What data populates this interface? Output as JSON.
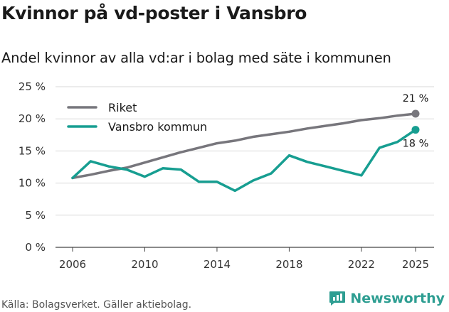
{
  "header": {
    "title": "Kvinnor på vd-poster i Vansbro",
    "subtitle": "Andel kvinnor av alla vd:ar i bolag med säte i kommunen"
  },
  "footer": {
    "source": "Källa: Bolagsverket. Gäller aktiebolag.",
    "brand": "Newsworthy"
  },
  "colors": {
    "riket": "#77767c",
    "kommun": "#179e91",
    "grid": "#d9d9d9",
    "brand": "#2e9e92"
  },
  "chart_data": {
    "type": "line",
    "title": "Kvinnor på vd-poster i Vansbro",
    "subtitle": "Andel kvinnor av alla vd:ar i bolag med säte i kommunen",
    "xlabel": "",
    "ylabel": "",
    "xlim": [
      2006,
      2025
    ],
    "ylim": [
      0,
      25
    ],
    "x_ticks": [
      2006,
      2010,
      2014,
      2018,
      2022,
      2025
    ],
    "x_tick_labels": [
      "2006",
      "2010",
      "2014",
      "2018",
      "2022",
      "2025"
    ],
    "y_ticks": [
      0,
      5,
      10,
      15,
      20,
      25
    ],
    "y_tick_labels": [
      "0 %",
      "5 %",
      "10 %",
      "15 %",
      "20 %",
      "25 %"
    ],
    "grid": true,
    "legend_position": "top-left",
    "x": [
      2006,
      2007,
      2008,
      2009,
      2010,
      2011,
      2012,
      2013,
      2014,
      2015,
      2016,
      2017,
      2018,
      2019,
      2020,
      2021,
      2022,
      2023,
      2024,
      2025
    ],
    "series": [
      {
        "name": "Riket",
        "color": "#77767c",
        "values": [
          10.8,
          11.3,
          11.9,
          12.4,
          13.2,
          14.0,
          14.8,
          15.5,
          16.2,
          16.6,
          17.2,
          17.6,
          18.0,
          18.5,
          18.9,
          19.3,
          19.8,
          20.1,
          20.5,
          20.8
        ],
        "end_label": "21 %"
      },
      {
        "name": "Vansbro kommun",
        "color": "#179e91",
        "values": [
          10.8,
          13.4,
          12.6,
          12.1,
          11.0,
          12.3,
          12.1,
          10.2,
          10.2,
          8.8,
          10.4,
          11.5,
          14.3,
          13.3,
          12.6,
          11.9,
          11.2,
          15.5,
          16.4,
          18.3
        ],
        "end_label": "18 %"
      }
    ]
  }
}
